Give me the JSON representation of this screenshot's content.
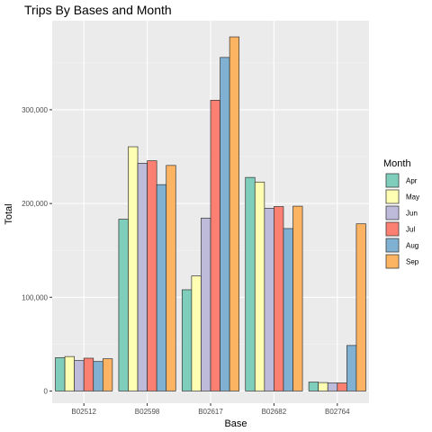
{
  "chart_data": {
    "type": "bar",
    "title": "Trips By Bases and Month",
    "xlabel": "Base",
    "ylabel": "Total",
    "categories": [
      "B02512",
      "B02598",
      "B02617",
      "B02682",
      "B02764"
    ],
    "ylim": [
      -13000,
      395000
    ],
    "yticks": [
      0,
      100000,
      200000,
      300000
    ],
    "ytick_labels": [
      "0",
      "100,000",
      "200,000",
      "300,000"
    ],
    "grid": true,
    "legend_title": "Month",
    "legend_position": "right",
    "series": [
      {
        "name": "Apr",
        "color": "#7fcdbb",
        "values": [
          35536,
          183263,
          108001,
          227808,
          9504
        ]
      },
      {
        "name": "May",
        "color": "#ffffb3",
        "values": [
          36765,
          260549,
          122734,
          222883,
          8974
        ]
      },
      {
        "name": "Jun",
        "color": "#bebada",
        "values": [
          32509,
          242975,
          184460,
          194926,
          8610
        ]
      },
      {
        "name": "Jul",
        "color": "#fb8072",
        "values": [
          35021,
          245597,
          310160,
          196754,
          8589
        ]
      },
      {
        "name": "Aug",
        "color": "#80b1d3",
        "values": [
          31472,
          220129,
          355803,
          173280,
          48591
        ]
      },
      {
        "name": "Sep",
        "color": "#fdb462",
        "values": [
          34370,
          240600,
          377695,
          197138,
          178333
        ]
      }
    ]
  }
}
